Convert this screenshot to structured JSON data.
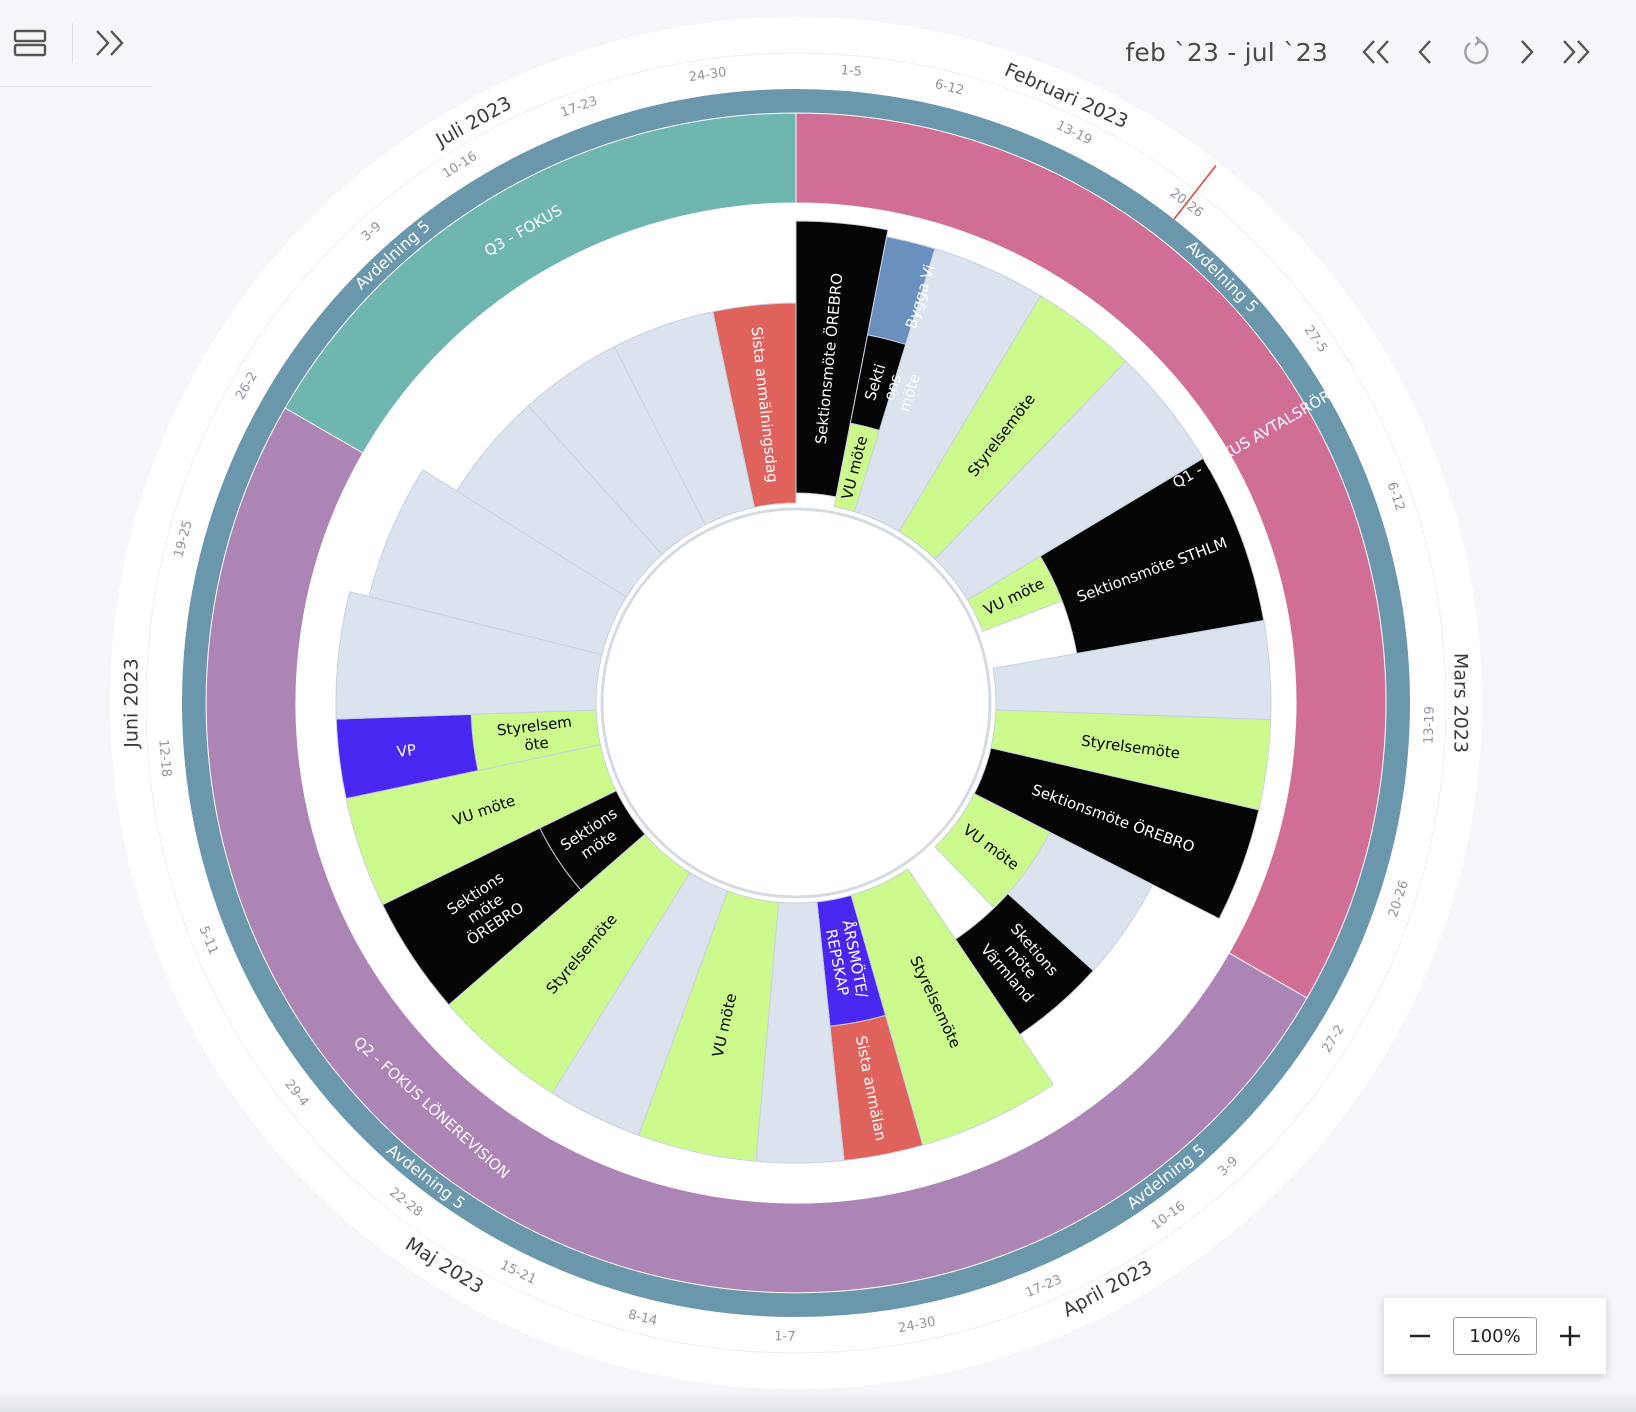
{
  "nav": {
    "date_range": "feb `23 - jul `23",
    "icons": [
      "layout-icon",
      "expand-panel-icon",
      "double-chevron-left-icon",
      "chevron-left-icon",
      "reset-icon",
      "chevron-right-icon",
      "double-chevron-right-icon"
    ]
  },
  "zoom": {
    "value": "100%",
    "minus_label": "−",
    "plus_label": "+"
  },
  "months": [
    {
      "label": "Februari 2023",
      "angle": 24
    },
    {
      "label": "Mars 2023",
      "angle": 90
    },
    {
      "label": "April 2023",
      "angle": 152
    },
    {
      "label": "Maj 2023",
      "angle": 212
    },
    {
      "label": "Juni 2023",
      "angle": 270
    },
    {
      "label": "Juli 2023",
      "angle": 331
    }
  ],
  "weeks": [
    {
      "label": "1-5",
      "angle": 5
    },
    {
      "label": "6-12",
      "angle": 14
    },
    {
      "label": "13-19",
      "angle": 26
    },
    {
      "label": "20-26",
      "angle": 38
    },
    {
      "label": "27-5",
      "angle": 55
    },
    {
      "label": "6-12",
      "angle": 71
    },
    {
      "label": "13-19",
      "angle": 92
    },
    {
      "label": "20-26",
      "angle": 108
    },
    {
      "label": "27-2",
      "angle": 122
    },
    {
      "label": "3-9",
      "angle": 137
    },
    {
      "label": "10-16",
      "angle": 144
    },
    {
      "label": "17-23",
      "angle": 157
    },
    {
      "label": "24-30",
      "angle": 169
    },
    {
      "label": "1-7",
      "angle": 181
    },
    {
      "label": "8-14",
      "angle": 194
    },
    {
      "label": "15-21",
      "angle": 206
    },
    {
      "label": "22-28",
      "angle": 218
    },
    {
      "label": "29-4",
      "angle": 232
    },
    {
      "label": "5-11",
      "angle": 248
    },
    {
      "label": "12-18",
      "angle": 265
    },
    {
      "label": "19-25",
      "angle": 285
    },
    {
      "label": "26-2",
      "angle": 300
    },
    {
      "label": "3-9",
      "angle": 318
    },
    {
      "label": "10-16",
      "angle": 328
    },
    {
      "label": "17-23",
      "angle": 340
    },
    {
      "label": "24-30",
      "angle": 352
    }
  ],
  "band_labels": [
    {
      "text": "Avdelning 5",
      "angle": 45
    },
    {
      "text": "Avdelning 5",
      "angle": 142
    },
    {
      "text": "Avdelning 5",
      "angle": 218
    },
    {
      "text": "Avdelning 5",
      "angle": 318
    }
  ],
  "quarters": [
    {
      "label": "Q1 - FOKUS AVTALSRÖRELSE",
      "start": 0,
      "end": 120,
      "color": "#d06e96",
      "label_angle": 60
    },
    {
      "label": "Q2 - FOKUS LÖNEREVISION",
      "start": 120,
      "end": 300,
      "color": "#ac84b5",
      "label_angle": 222
    },
    {
      "label": "Q3 - FOKUS",
      "start": 300,
      "end": 360,
      "color": "#70b6b0",
      "label_angle": 330
    }
  ],
  "colors": {
    "band": "#6a97ab",
    "empty": "#dbe4ee",
    "green": "#cdfa8c",
    "black": "#050505",
    "red": "#e0625c",
    "blue": "#6a90bf",
    "violet": "#4a26f1",
    "today": "#e04a3a"
  },
  "today_angle": 38,
  "activities": [
    {
      "label": "Sektionsmöte ÖREBRO",
      "color": "black",
      "text": "#ffffff",
      "start": 0,
      "end": 11,
      "r0": 210,
      "r1": 482
    },
    {
      "label": "Bygga Vi",
      "color": "blue",
      "text": "#ffffff",
      "start": 11,
      "end": 23,
      "r0": 375,
      "r1": 475
    },
    {
      "label": "Sekti ons möte",
      "color": "black",
      "text": "#ffffff",
      "start": 11,
      "end": 23,
      "r0": 285,
      "r1": 375
    },
    {
      "label": "VU möte",
      "color": "green",
      "text": "#000000",
      "start": 11,
      "end": 17,
      "r0": 200,
      "r1": 285
    },
    {
      "label": "",
      "color": "empty",
      "text": "#000000",
      "start": 17,
      "end": 31,
      "r0": 200,
      "r1": 475
    },
    {
      "label": "Styrelsemöte",
      "color": "green",
      "text": "#000000",
      "start": 31,
      "end": 44,
      "r0": 200,
      "r1": 475
    },
    {
      "label": "",
      "color": "empty",
      "text": "#000000",
      "start": 44,
      "end": 59,
      "r0": 200,
      "r1": 475
    },
    {
      "label": "VU möte",
      "color": "green",
      "text": "#000000",
      "start": 59,
      "end": 69,
      "r0": 200,
      "r1": 285
    },
    {
      "label": "Sektionsmöte STHLM",
      "color": "black",
      "text": "#ffffff",
      "start": 59,
      "end": 80,
      "r0": 285,
      "r1": 475
    },
    {
      "label": "",
      "color": "empty",
      "text": "#000000",
      "start": 80,
      "end": 92,
      "r0": 200,
      "r1": 475
    },
    {
      "label": "Styrelsemöte",
      "color": "green",
      "text": "#000000",
      "start": 92,
      "end": 103,
      "r0": 200,
      "r1": 475
    },
    {
      "label": "Sektionsmöte ÖREBRO",
      "color": "black",
      "text": "#ffffff",
      "start": 103,
      "end": 117,
      "r0": 200,
      "r1": 475
    },
    {
      "label": "",
      "color": "empty",
      "text": "#000000",
      "start": 117,
      "end": 134,
      "r0": 200,
      "r1": 400
    },
    {
      "label": "VU möte",
      "color": "green",
      "text": "#000000",
      "start": 117,
      "end": 136,
      "r0": 200,
      "r1": 285
    },
    {
      "label": "Sketions möte Värmland",
      "color": "black",
      "text": "#ffffff",
      "start": 132,
      "end": 146,
      "r0": 285,
      "r1": 400
    },
    {
      "label": "Styrelsemöte",
      "color": "green",
      "text": "#000000",
      "start": 146,
      "end": 164,
      "r0": 200,
      "r1": 460
    },
    {
      "label": "ÅRSMÖTE/ REPSKAP",
      "color": "violet",
      "text": "#ffffff",
      "start": 164,
      "end": 174,
      "r0": 200,
      "r1": 325
    },
    {
      "label": "Sista anmälan",
      "color": "red",
      "text": "#ffffff",
      "start": 164,
      "end": 174,
      "r0": 325,
      "r1": 460
    },
    {
      "label": "",
      "color": "empty",
      "text": "#000000",
      "start": 174,
      "end": 185,
      "r0": 200,
      "r1": 460
    },
    {
      "label": "VU möte",
      "color": "green",
      "text": "#000000",
      "start": 185,
      "end": 200,
      "r0": 200,
      "r1": 460
    },
    {
      "label": "",
      "color": "empty",
      "text": "#000000",
      "start": 200,
      "end": 212,
      "r0": 200,
      "r1": 460
    },
    {
      "label": "Styrelsemöte",
      "color": "green",
      "text": "#000000",
      "start": 212,
      "end": 229,
      "r0": 200,
      "r1": 460
    },
    {
      "label": "Sektions möte ÖREBRO",
      "color": "black",
      "text": "#ffffff",
      "start": 229,
      "end": 244,
      "r0": 285,
      "r1": 460
    },
    {
      "label": "Sektions möte",
      "color": "black",
      "text": "#ffffff",
      "start": 229,
      "end": 244,
      "r0": 200,
      "r1": 285
    },
    {
      "label": "VU möte",
      "color": "green",
      "text": "#000000",
      "start": 244,
      "end": 258,
      "r0": 200,
      "r1": 460
    },
    {
      "label": "Styrelsem öte",
      "color": "green",
      "text": "#000000",
      "start": 258,
      "end": 268,
      "r0": 200,
      "r1": 325
    },
    {
      "label": "VP",
      "color": "violet",
      "text": "#ffffff",
      "start": 258,
      "end": 268,
      "r0": 325,
      "r1": 460
    },
    {
      "label": "",
      "color": "empty",
      "text": "#000000",
      "start": 268,
      "end": 284,
      "r0": 200,
      "r1": 460
    },
    {
      "label": "",
      "color": "empty",
      "text": "#000000",
      "start": 284,
      "end": 302,
      "r0": 200,
      "r1": 440
    },
    {
      "label": "",
      "color": "empty",
      "text": "#000000",
      "start": 302,
      "end": 318,
      "r0": 200,
      "r1": 400
    },
    {
      "label": "",
      "color": "empty",
      "text": "#000000",
      "start": 318,
      "end": 333,
      "r0": 200,
      "r1": 400
    },
    {
      "label": "",
      "color": "empty",
      "text": "#000000",
      "start": 333,
      "end": 348,
      "r0": 200,
      "r1": 400
    },
    {
      "label": "Sista anmälningsdag",
      "color": "red",
      "text": "#ffffff",
      "start": 348,
      "end": 360,
      "r0": 200,
      "r1": 400
    }
  ]
}
